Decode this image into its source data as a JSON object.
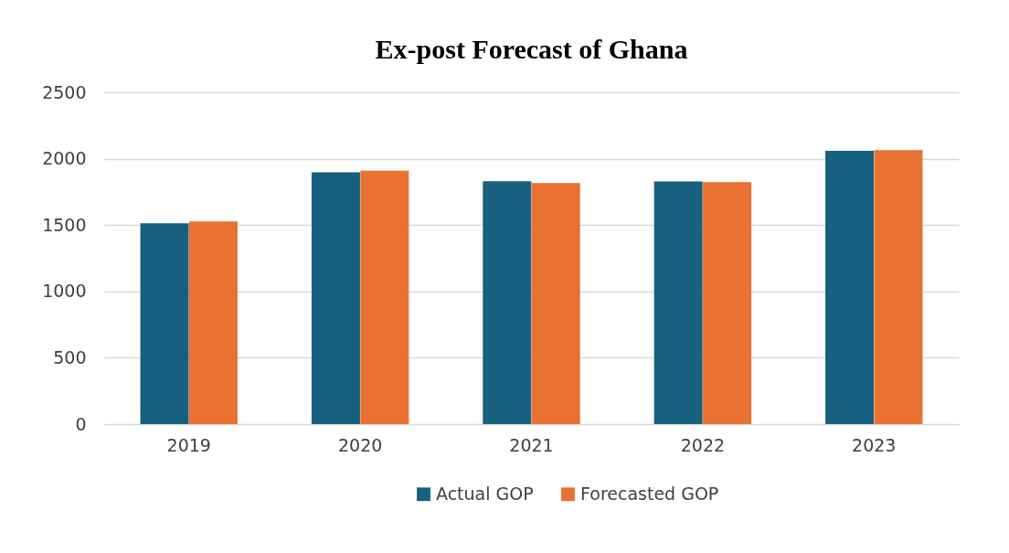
{
  "chart_data": {
    "type": "bar",
    "title": "Ex-post Forecast of Ghana",
    "categories": [
      "2019",
      "2020",
      "2021",
      "2022",
      "2023"
    ],
    "series": [
      {
        "name": "Actual GOP",
        "color": "#17607f",
        "values": [
          1514,
          1897,
          1830,
          1828,
          2060
        ]
      },
      {
        "name": "Forecasted GOP",
        "color": "#e97132",
        "values": [
          1528,
          1910,
          1817,
          1823,
          2065
        ]
      }
    ],
    "ylim": [
      0,
      2500
    ],
    "yticks": [
      0,
      500,
      1000,
      1500,
      2000,
      2500
    ],
    "grid": "y",
    "legend": "bottom"
  }
}
